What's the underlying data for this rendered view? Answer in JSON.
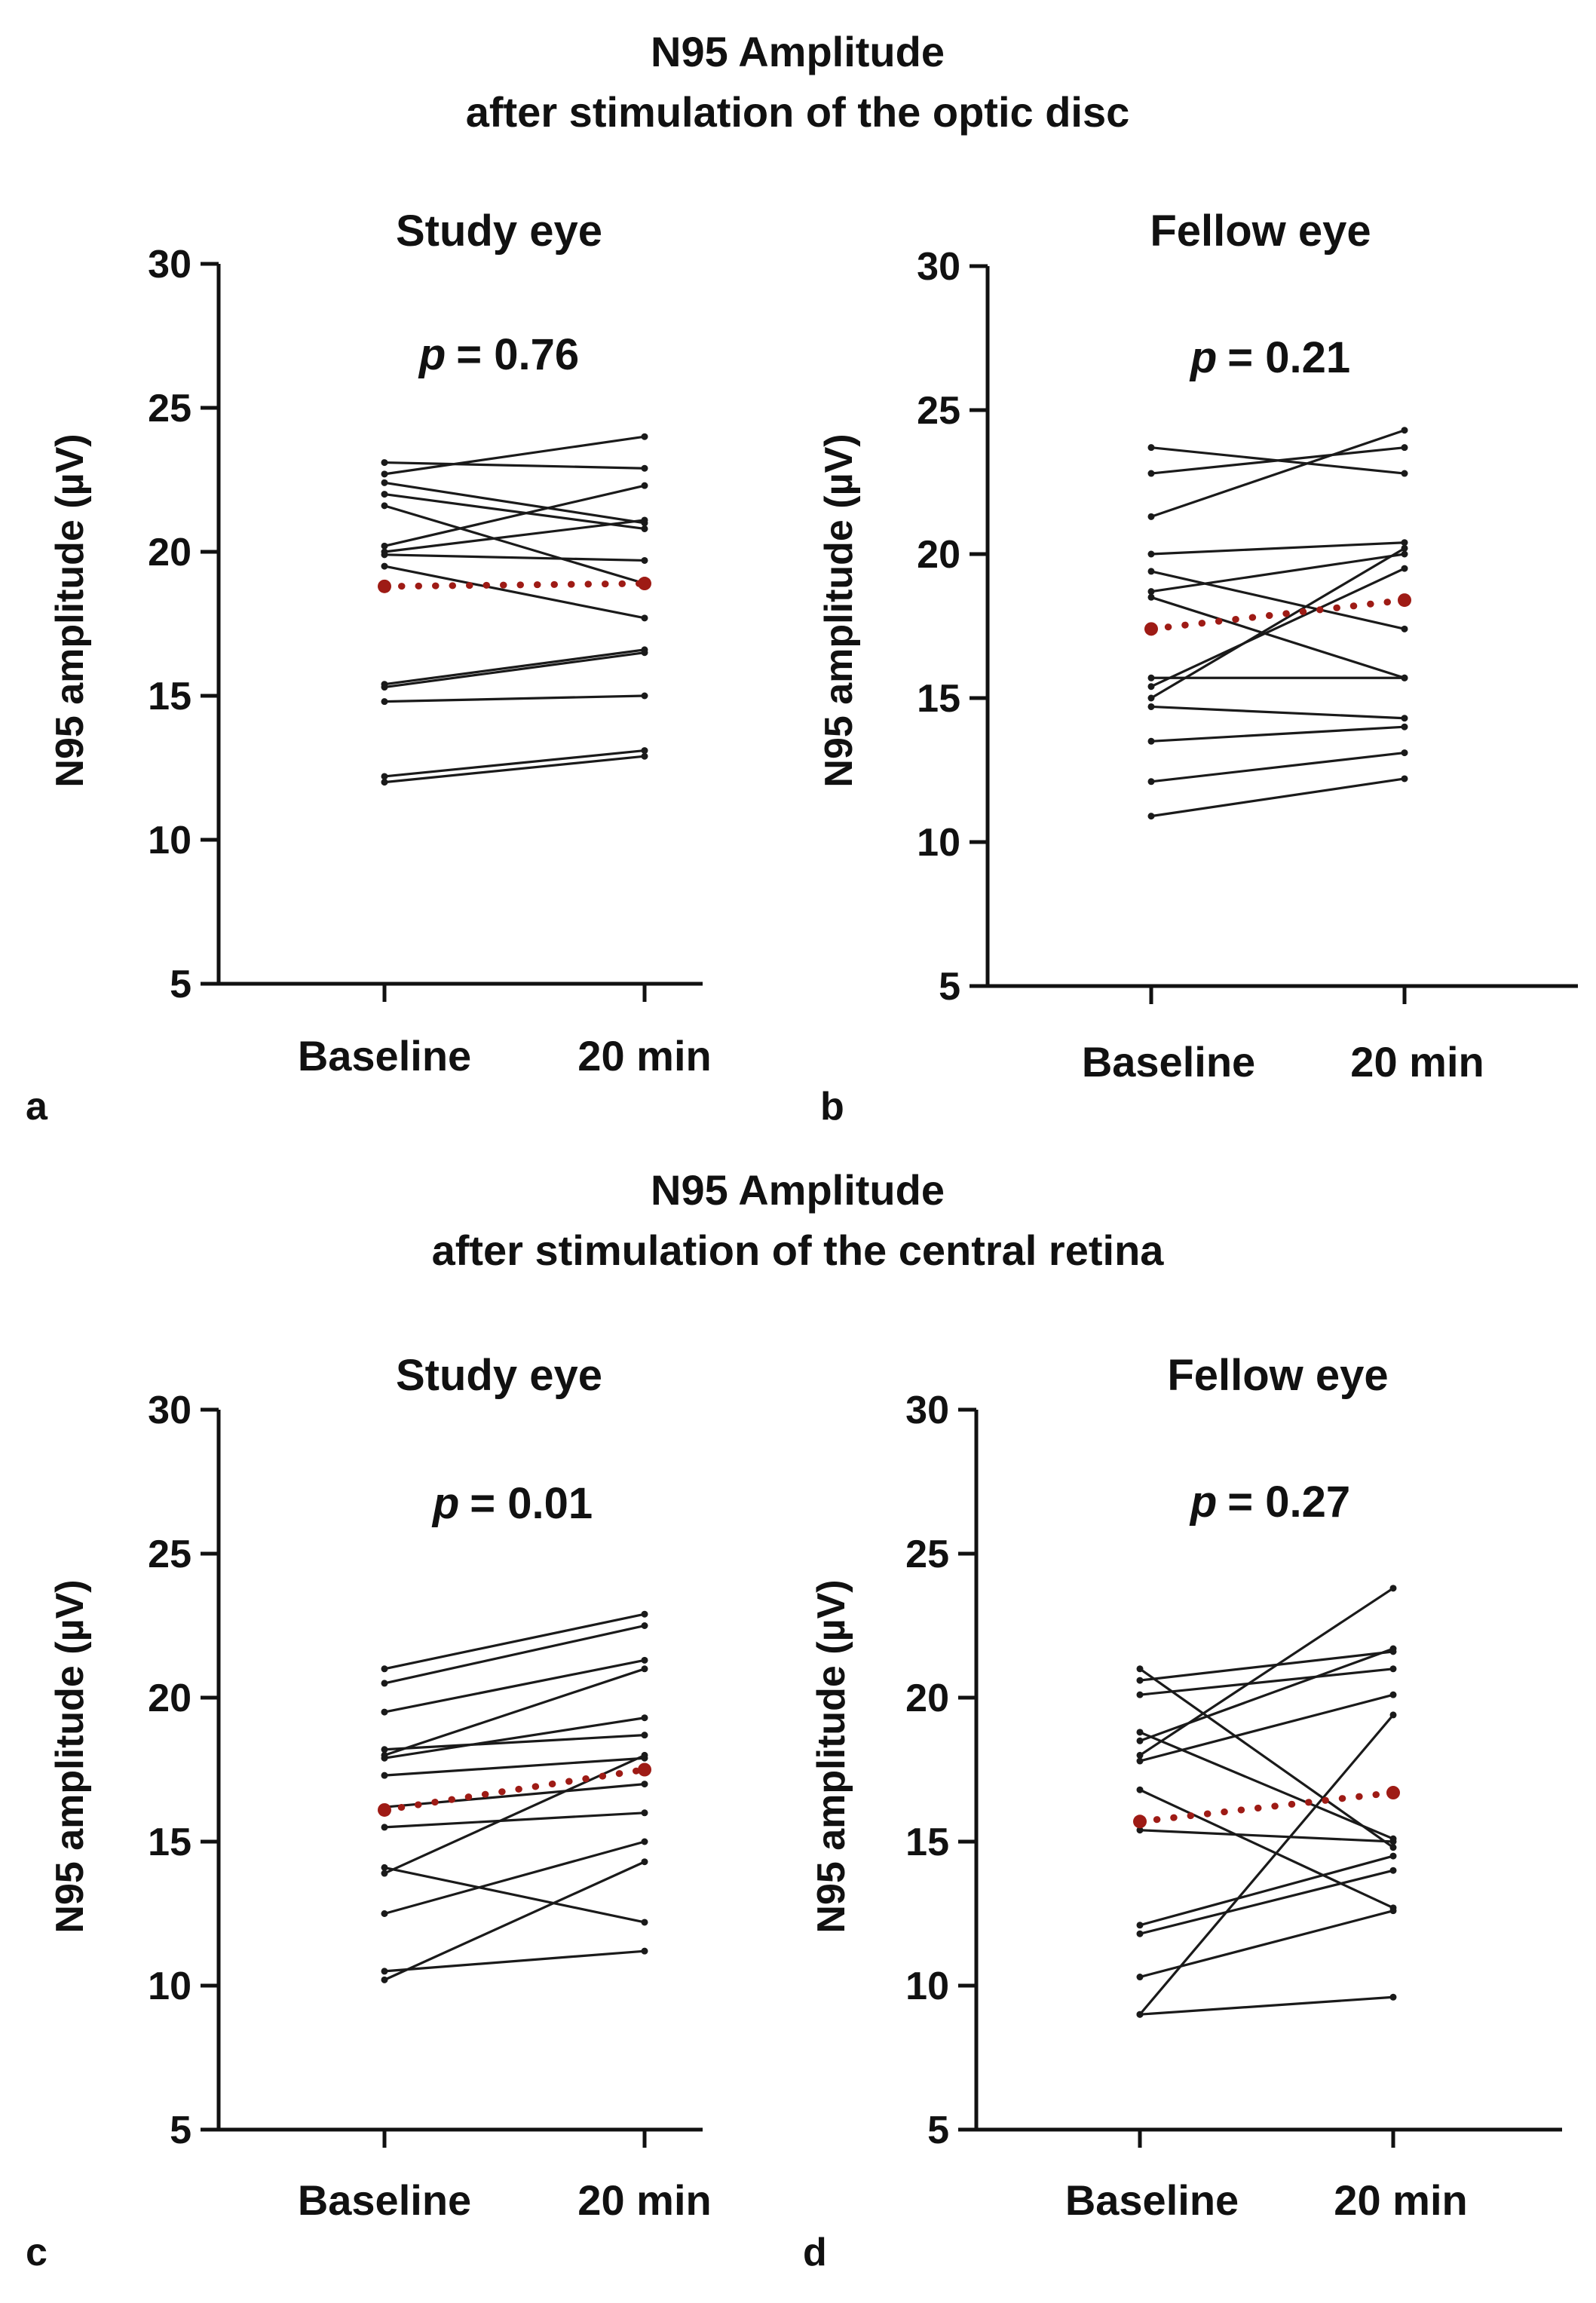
{
  "sections": [
    {
      "title_line1": "N95 Amplitude",
      "title_line2": "after stimulation of the optic disc"
    },
    {
      "title_line1": "N95 Amplitude",
      "title_line2": "after stimulation of the central retina"
    }
  ],
  "chart_data": [
    {
      "type": "line",
      "panel": "a",
      "title": "Study eye",
      "p_label": "p",
      "p_value": "= 0.76",
      "xlabel": "",
      "ylabel": "N95 amplitude (µV)",
      "categories": [
        "Baseline",
        "20 min"
      ],
      "ylim": [
        5,
        30
      ],
      "yticks": [
        5,
        10,
        15,
        20,
        25,
        30
      ],
      "series": [
        {
          "values": [
            23.1,
            22.9
          ]
        },
        {
          "values": [
            22.7,
            24.0
          ]
        },
        {
          "values": [
            22.4,
            21.0
          ]
        },
        {
          "values": [
            22.0,
            20.8
          ]
        },
        {
          "values": [
            21.6,
            18.9
          ]
        },
        {
          "values": [
            20.2,
            22.3
          ]
        },
        {
          "values": [
            20.0,
            21.1
          ]
        },
        {
          "values": [
            19.9,
            19.7
          ]
        },
        {
          "values": [
            19.5,
            17.7
          ]
        },
        {
          "values": [
            15.4,
            16.6
          ]
        },
        {
          "values": [
            15.3,
            16.5
          ]
        },
        {
          "values": [
            14.8,
            15.0
          ]
        },
        {
          "values": [
            12.2,
            13.1
          ]
        },
        {
          "values": [
            12.0,
            12.9
          ]
        }
      ],
      "mean": [
        18.8,
        18.9
      ]
    },
    {
      "type": "line",
      "panel": "b",
      "title": "Fellow eye",
      "p_label": "p",
      "p_value": "= 0.21",
      "xlabel": "",
      "ylabel": "N95 amplitude (µV)",
      "categories": [
        "Baseline",
        "20 min"
      ],
      "ylim": [
        5,
        30
      ],
      "yticks": [
        5,
        10,
        15,
        20,
        25,
        30
      ],
      "series": [
        {
          "values": [
            23.7,
            22.8
          ]
        },
        {
          "values": [
            22.8,
            23.7
          ]
        },
        {
          "values": [
            21.3,
            24.3
          ]
        },
        {
          "values": [
            20.0,
            20.4
          ]
        },
        {
          "values": [
            19.4,
            17.4
          ]
        },
        {
          "values": [
            18.7,
            20.0
          ]
        },
        {
          "values": [
            18.5,
            15.7
          ]
        },
        {
          "values": [
            15.7,
            15.7
          ]
        },
        {
          "values": [
            15.4,
            19.5
          ]
        },
        {
          "values": [
            15.0,
            20.2
          ]
        },
        {
          "values": [
            14.7,
            14.3
          ]
        },
        {
          "values": [
            13.5,
            14.0
          ]
        },
        {
          "values": [
            12.1,
            13.1
          ]
        },
        {
          "values": [
            10.9,
            12.2
          ]
        }
      ],
      "mean": [
        17.4,
        18.4
      ]
    },
    {
      "type": "line",
      "panel": "c",
      "title": "Study eye",
      "p_label": "p",
      "p_value": "= 0.01",
      "xlabel": "",
      "ylabel": "N95 amplitude (µV)",
      "categories": [
        "Baseline",
        "20 min"
      ],
      "ylim": [
        5,
        30
      ],
      "yticks": [
        5,
        10,
        15,
        20,
        25,
        30
      ],
      "series": [
        {
          "values": [
            21.0,
            22.9
          ]
        },
        {
          "values": [
            20.5,
            22.5
          ]
        },
        {
          "values": [
            19.5,
            21.3
          ]
        },
        {
          "values": [
            18.2,
            18.7
          ]
        },
        {
          "values": [
            18.0,
            21.0
          ]
        },
        {
          "values": [
            17.9,
            19.3
          ]
        },
        {
          "values": [
            17.3,
            17.9
          ]
        },
        {
          "values": [
            16.2,
            17.0
          ]
        },
        {
          "values": [
            15.5,
            16.0
          ]
        },
        {
          "values": [
            14.1,
            12.2
          ]
        },
        {
          "values": [
            13.9,
            18.0
          ]
        },
        {
          "values": [
            12.5,
            15.0
          ]
        },
        {
          "values": [
            10.5,
            11.2
          ]
        },
        {
          "values": [
            10.2,
            14.3
          ]
        }
      ],
      "mean": [
        16.1,
        17.5
      ]
    },
    {
      "type": "line",
      "panel": "d",
      "title": "Fellow eye",
      "p_label": "p",
      "p_value": "= 0.27",
      "xlabel": "",
      "ylabel": "N95 amplitude (µV)",
      "categories": [
        "Baseline",
        "20 min"
      ],
      "ylim": [
        5,
        30
      ],
      "yticks": [
        5,
        10,
        15,
        20,
        25,
        30
      ],
      "series": [
        {
          "values": [
            21.0,
            14.8
          ]
        },
        {
          "values": [
            20.6,
            21.6
          ]
        },
        {
          "values": [
            20.1,
            21.0
          ]
        },
        {
          "values": [
            18.8,
            15.1
          ]
        },
        {
          "values": [
            18.5,
            21.7
          ]
        },
        {
          "values": [
            18.0,
            23.8
          ]
        },
        {
          "values": [
            17.8,
            20.1
          ]
        },
        {
          "values": [
            16.8,
            12.7
          ]
        },
        {
          "values": [
            15.4,
            15.0
          ]
        },
        {
          "values": [
            12.1,
            14.5
          ]
        },
        {
          "values": [
            11.8,
            14.0
          ]
        },
        {
          "values": [
            10.3,
            12.6
          ]
        },
        {
          "values": [
            9.0,
            9.6
          ]
        },
        {
          "values": [
            9.0,
            19.4
          ]
        }
      ],
      "mean": [
        15.7,
        16.7
      ]
    }
  ]
}
